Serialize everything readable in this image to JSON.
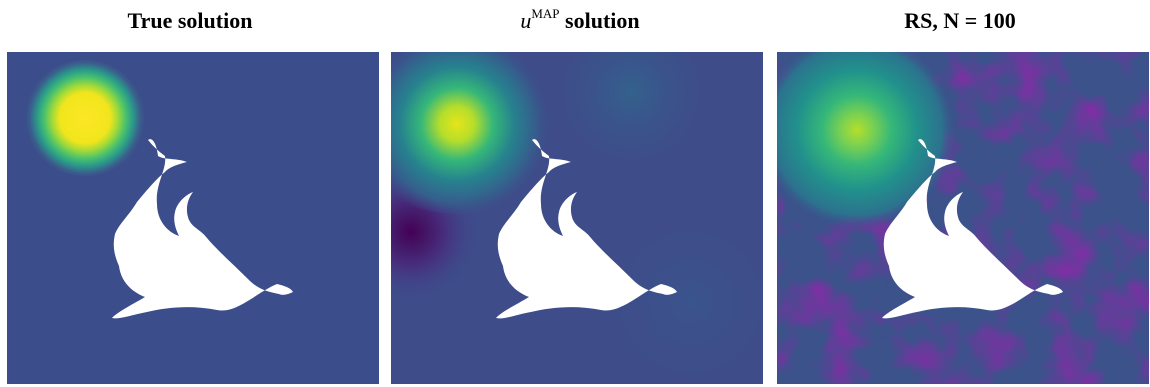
{
  "panels": [
    {
      "id": "true",
      "title": "True solution"
    },
    {
      "id": "map",
      "title_math": "u",
      "title_sup": "MAP",
      "title_rest": " solution"
    },
    {
      "id": "rs",
      "title": "RS, N = 100"
    }
  ],
  "colors": {
    "background_low": "#3b4d8a",
    "dark": "#440154",
    "mid": "#21918c",
    "light": "#5ec962",
    "peak": "#fde725",
    "dolphin": "#ffffff"
  }
}
